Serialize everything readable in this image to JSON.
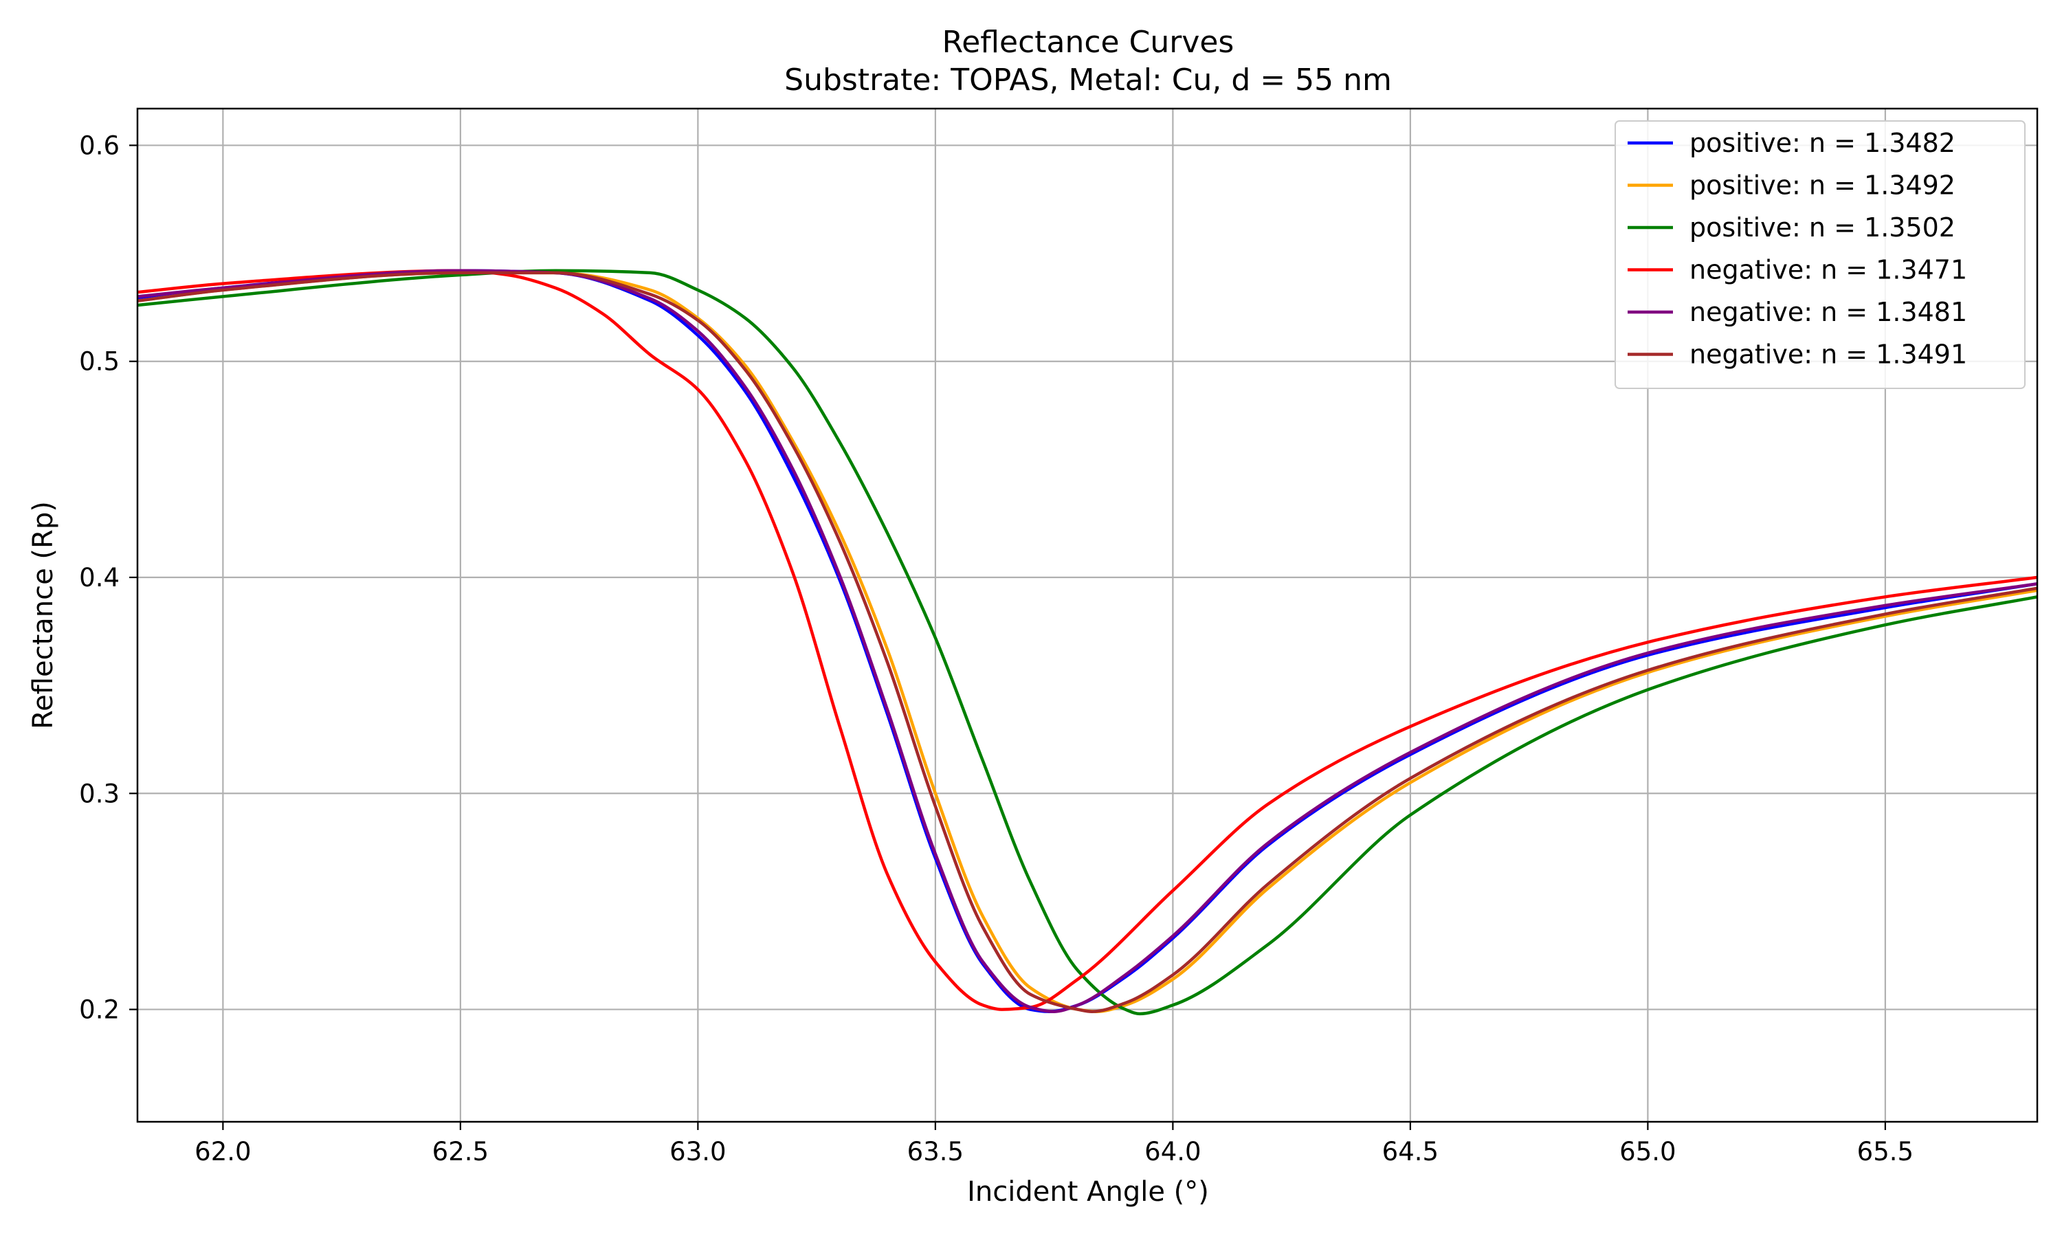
{
  "chart_data": {
    "type": "line",
    "title": "Reflectance Curves",
    "subtitle": "Substrate: TOPAS, Metal: Cu, d = 55 nm",
    "xlabel": "Incident Angle (°)",
    "ylabel": "Reflectance (Rp)",
    "xlim": [
      61.82,
      65.82
    ],
    "ylim": [
      0.148,
      0.617
    ],
    "xticks": [
      62.0,
      62.5,
      63.0,
      63.5,
      64.0,
      64.5,
      65.0,
      65.5
    ],
    "xtick_labels": [
      "62.0",
      "62.5",
      "63.0",
      "63.5",
      "64.0",
      "64.5",
      "65.0",
      "65.5"
    ],
    "yticks": [
      0.2,
      0.3,
      0.4,
      0.5,
      0.6
    ],
    "ytick_labels": [
      "0.2",
      "0.3",
      "0.4",
      "0.5",
      "0.6"
    ],
    "grid": true,
    "legend_position": "top-right",
    "series": [
      {
        "name": "positive: n = 1.3482",
        "color": "#0000ff",
        "x": [
          61.82,
          62.0,
          62.5,
          62.7,
          62.9,
          63.0,
          63.1,
          63.2,
          63.3,
          63.4,
          63.5,
          63.6,
          63.7,
          63.74,
          63.8,
          63.9,
          64.0,
          64.2,
          64.5,
          65.0,
          65.5,
          65.82
        ],
        "y": [
          0.529,
          0.534,
          0.542,
          0.541,
          0.528,
          0.512,
          0.486,
          0.447,
          0.398,
          0.336,
          0.27,
          0.221,
          0.2,
          0.199,
          0.202,
          0.215,
          0.233,
          0.276,
          0.318,
          0.364,
          0.386,
          0.397
        ]
      },
      {
        "name": "positive: n = 1.3492",
        "color": "#ffa500",
        "x": [
          61.82,
          62.0,
          62.5,
          62.7,
          62.9,
          63.0,
          63.1,
          63.2,
          63.3,
          63.4,
          63.5,
          63.6,
          63.7,
          63.8,
          63.84,
          63.9,
          64.0,
          64.2,
          64.5,
          65.0,
          65.5,
          65.82
        ],
        "y": [
          0.528,
          0.533,
          0.541,
          0.541,
          0.533,
          0.52,
          0.498,
          0.463,
          0.42,
          0.366,
          0.3,
          0.243,
          0.21,
          0.2,
          0.199,
          0.202,
          0.214,
          0.256,
          0.305,
          0.356,
          0.382,
          0.394
        ]
      },
      {
        "name": "positive: n = 1.3502",
        "color": "#008000",
        "x": [
          61.82,
          62.0,
          62.5,
          62.7,
          62.9,
          63.0,
          63.1,
          63.2,
          63.3,
          63.4,
          63.5,
          63.6,
          63.7,
          63.8,
          63.9,
          63.93,
          64.0,
          64.2,
          64.5,
          65.0,
          65.5,
          65.82
        ],
        "y": [
          0.526,
          0.53,
          0.54,
          0.542,
          0.541,
          0.533,
          0.52,
          0.497,
          0.462,
          0.42,
          0.372,
          0.315,
          0.259,
          0.218,
          0.2,
          0.198,
          0.202,
          0.23,
          0.29,
          0.348,
          0.378,
          0.391
        ]
      },
      {
        "name": "negative: n = 1.3471",
        "color": "#ff0000",
        "x": [
          61.82,
          62.0,
          62.5,
          62.6,
          62.7,
          62.8,
          62.9,
          63.0,
          63.1,
          63.2,
          63.3,
          63.4,
          63.5,
          63.6,
          63.64,
          63.7,
          63.8,
          64.0,
          64.2,
          64.5,
          65.0,
          65.5,
          65.82
        ],
        "y": [
          0.532,
          0.536,
          0.542,
          0.54,
          0.534,
          0.522,
          0.503,
          0.487,
          0.454,
          0.402,
          0.33,
          0.262,
          0.222,
          0.202,
          0.2,
          0.201,
          0.214,
          0.255,
          0.295,
          0.331,
          0.37,
          0.391,
          0.4
        ]
      },
      {
        "name": "negative: n = 1.3481",
        "color": "#800080",
        "x": [
          61.82,
          62.0,
          62.5,
          62.7,
          62.9,
          63.0,
          63.1,
          63.2,
          63.3,
          63.4,
          63.5,
          63.6,
          63.7,
          63.75,
          63.8,
          63.9,
          64.0,
          64.2,
          64.5,
          65.0,
          65.5,
          65.82
        ],
        "y": [
          0.53,
          0.534,
          0.542,
          0.541,
          0.529,
          0.514,
          0.488,
          0.45,
          0.4,
          0.338,
          0.272,
          0.222,
          0.201,
          0.199,
          0.202,
          0.216,
          0.234,
          0.277,
          0.319,
          0.365,
          0.387,
          0.397
        ]
      },
      {
        "name": "negative: n = 1.3491",
        "color": "#a52a2a",
        "x": [
          61.82,
          62.0,
          62.5,
          62.7,
          62.9,
          63.0,
          63.1,
          63.2,
          63.3,
          63.4,
          63.5,
          63.6,
          63.7,
          63.8,
          63.83,
          63.9,
          64.0,
          64.2,
          64.5,
          65.0,
          65.5,
          65.82
        ],
        "y": [
          0.528,
          0.533,
          0.541,
          0.541,
          0.531,
          0.519,
          0.496,
          0.461,
          0.416,
          0.36,
          0.294,
          0.238,
          0.207,
          0.2,
          0.199,
          0.203,
          0.216,
          0.258,
          0.307,
          0.357,
          0.383,
          0.395
        ]
      }
    ]
  }
}
